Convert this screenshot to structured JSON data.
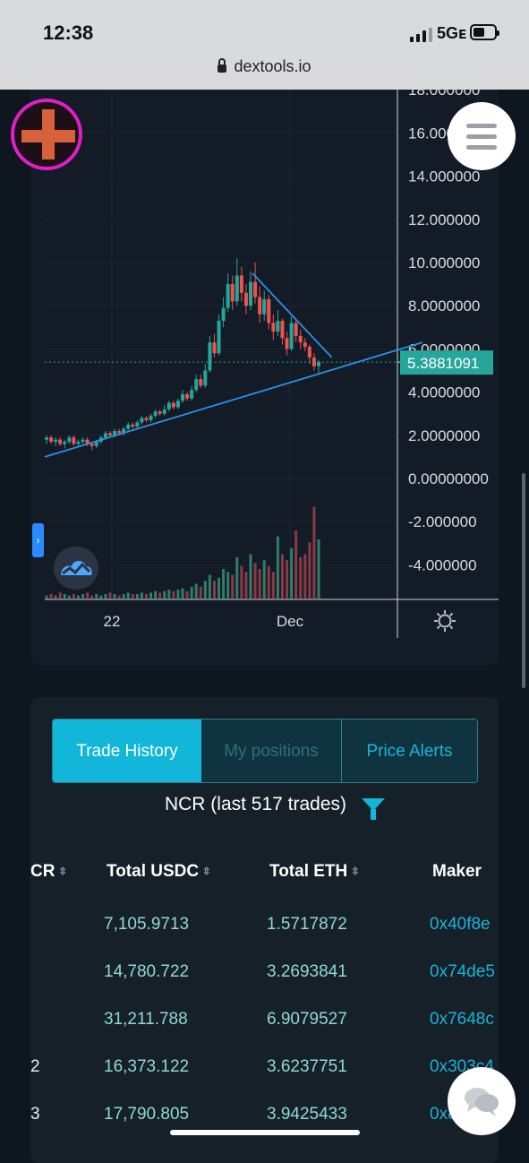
{
  "status": {
    "time": "12:38",
    "network": "5Gᴇ"
  },
  "browser": {
    "url": "dextools.io"
  },
  "chart": {
    "price_label": "5.3881091",
    "y_ticks": [
      "18.000000",
      "16.000000",
      "14.000000",
      "12.000000",
      "10.000000",
      "8.0000000",
      "6.0000000",
      "4.0000000",
      "2.0000000",
      "0.00000000",
      "-2.000000",
      "-4.000000"
    ],
    "x_ticks": [
      "22",
      "Dec"
    ]
  },
  "chart_data": {
    "type": "candlestick",
    "y_range": [
      -5.6,
      18.5
    ],
    "last_price": 5.3881091,
    "x_tick_labels": [
      "22",
      "Dec"
    ],
    "trendlines": [
      {
        "name": "support",
        "points": [
          [
            0,
            1.0
          ],
          [
            100,
            6.3
          ]
        ]
      },
      {
        "name": "resistance",
        "points": [
          [
            55,
            9.5
          ],
          [
            76,
            5.6
          ]
        ]
      }
    ],
    "candles": [
      [
        1.8,
        1.9,
        1.6,
        2.0
      ],
      [
        1.9,
        1.7,
        1.6,
        2.0
      ],
      [
        1.7,
        1.8,
        1.5,
        1.9
      ],
      [
        1.8,
        1.6,
        1.5,
        1.9
      ],
      [
        1.6,
        1.7,
        1.4,
        1.8
      ],
      [
        1.7,
        1.9,
        1.6,
        2.0
      ],
      [
        1.9,
        1.6,
        1.5,
        2.0
      ],
      [
        1.6,
        1.7,
        1.5,
        1.8
      ],
      [
        1.7,
        1.8,
        1.6,
        1.9
      ],
      [
        1.8,
        1.6,
        1.5,
        1.9
      ],
      [
        1.6,
        1.5,
        1.3,
        1.7
      ],
      [
        1.5,
        1.7,
        1.4,
        1.8
      ],
      [
        1.7,
        1.9,
        1.6,
        2.0
      ],
      [
        1.9,
        2.1,
        1.8,
        2.2
      ],
      [
        2.1,
        2.0,
        1.9,
        2.2
      ],
      [
        2.0,
        2.2,
        1.9,
        2.3
      ],
      [
        2.2,
        2.1,
        2.0,
        2.3
      ],
      [
        2.1,
        2.3,
        2.0,
        2.4
      ],
      [
        2.3,
        2.5,
        2.2,
        2.6
      ],
      [
        2.5,
        2.4,
        2.3,
        2.6
      ],
      [
        2.4,
        2.6,
        2.3,
        2.7
      ],
      [
        2.6,
        2.8,
        2.5,
        2.9
      ],
      [
        2.8,
        2.7,
        2.6,
        2.9
      ],
      [
        2.7,
        2.9,
        2.6,
        3.0
      ],
      [
        2.9,
        3.1,
        2.8,
        3.2
      ],
      [
        3.1,
        3.0,
        2.9,
        3.2
      ],
      [
        3.0,
        3.2,
        2.9,
        3.4
      ],
      [
        3.2,
        3.5,
        3.1,
        3.6
      ],
      [
        3.5,
        3.3,
        3.2,
        3.6
      ],
      [
        3.3,
        3.6,
        3.2,
        3.7
      ],
      [
        3.6,
        3.9,
        3.5,
        4.1
      ],
      [
        3.9,
        3.7,
        3.6,
        4.0
      ],
      [
        3.7,
        4.1,
        3.6,
        4.3
      ],
      [
        4.1,
        4.6,
        4.0,
        4.8
      ],
      [
        4.6,
        4.3,
        4.2,
        4.8
      ],
      [
        4.3,
        5.0,
        4.2,
        5.3
      ],
      [
        5.0,
        6.3,
        4.9,
        6.6
      ],
      [
        6.3,
        5.8,
        5.6,
        6.7
      ],
      [
        5.8,
        7.3,
        5.7,
        7.6
      ],
      [
        7.3,
        7.9,
        7.0,
        8.4
      ],
      [
        7.9,
        9.0,
        7.7,
        9.5
      ],
      [
        9.0,
        8.2,
        7.8,
        9.4
      ],
      [
        8.2,
        9.4,
        8.0,
        10.2
      ],
      [
        9.4,
        8.6,
        8.2,
        9.8
      ],
      [
        8.6,
        8.0,
        7.6,
        9.0
      ],
      [
        8.0,
        9.1,
        7.8,
        9.6
      ],
      [
        9.1,
        8.4,
        8.1,
        10.0
      ],
      [
        8.4,
        7.6,
        7.2,
        8.9
      ],
      [
        7.6,
        8.3,
        7.3,
        8.7
      ],
      [
        8.3,
        7.2,
        6.9,
        8.5
      ],
      [
        7.2,
        6.8,
        6.4,
        7.6
      ],
      [
        6.8,
        7.3,
        6.6,
        7.8
      ],
      [
        7.3,
        6.5,
        6.2,
        7.4
      ],
      [
        6.5,
        6.0,
        5.7,
        6.8
      ],
      [
        6.0,
        7.2,
        5.9,
        7.5
      ],
      [
        7.2,
        6.6,
        6.3,
        7.4
      ],
      [
        6.6,
        6.3,
        6.0,
        6.9
      ],
      [
        6.3,
        6.1,
        5.9,
        6.5
      ],
      [
        6.1,
        5.6,
        5.3,
        6.2
      ],
      [
        5.6,
        5.2,
        5.0,
        5.8
      ],
      [
        5.2,
        5.4,
        4.8,
        5.5
      ]
    ],
    "volumes": [
      2,
      3,
      2,
      4,
      3,
      2,
      3,
      2,
      3,
      4,
      2,
      3,
      2,
      3,
      4,
      3,
      2,
      3,
      4,
      3,
      3,
      4,
      3,
      4,
      5,
      4,
      5,
      6,
      5,
      6,
      7,
      5,
      8,
      10,
      8,
      12,
      16,
      12,
      14,
      20,
      18,
      16,
      28,
      22,
      18,
      30,
      24,
      20,
      26,
      22,
      18,
      42,
      30,
      26,
      34,
      46,
      28,
      30,
      38,
      62,
      40
    ]
  },
  "trade": {
    "tabs": {
      "trade_history": "Trade History",
      "my_positions": "My positions",
      "price_alerts": "Price Alerts"
    },
    "title": "NCR (last 517 trades)",
    "columns": {
      "c0": "CR",
      "c1": "Total USDC",
      "c2": "Total ETH",
      "c3": "Maker"
    },
    "rows": [
      {
        "c0": "",
        "c1": "7,105.9713",
        "c2": "1.5717872",
        "c3": "0x40f8e"
      },
      {
        "c0": "",
        "c1": "14,780.722",
        "c2": "3.2693841",
        "c3": "0x74de5"
      },
      {
        "c0": "",
        "c1": "31,211.788",
        "c2": "6.9079527",
        "c3": "0x7648c"
      },
      {
        "c0": "2",
        "c1": "16,373.122",
        "c2": "3.6237751",
        "c3": "0x303c4"
      },
      {
        "c0": "3",
        "c1": "17,790.805",
        "c2": "3.9425433",
        "c3": "0x8a21f"
      }
    ]
  }
}
